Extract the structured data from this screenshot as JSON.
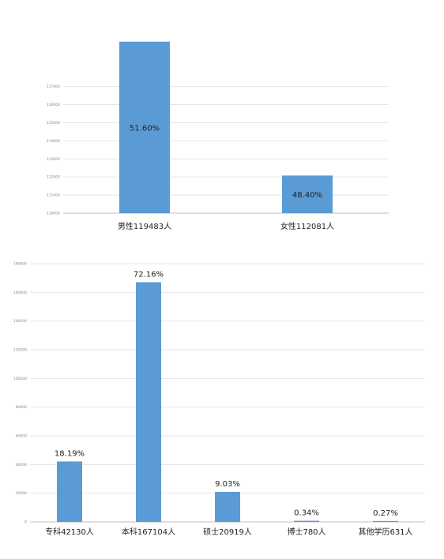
{
  "chart_data": [
    {
      "type": "bar",
      "categories": [
        "男性119483人",
        "女性112081人"
      ],
      "values": [
        119483,
        112081
      ],
      "data_labels": [
        "51.60%",
        "48.40%"
      ],
      "label_position": "inside",
      "ylim": [
        110000,
        121000
      ],
      "yticks": [
        "110000",
        "111000",
        "112000",
        "113000",
        "114000",
        "115000",
        "116000",
        "117000"
      ],
      "color": "#5b9bd5",
      "grid": true,
      "legend": "none"
    },
    {
      "type": "bar",
      "categories": [
        "专科42130人",
        "本科167104人",
        "硕士20919人",
        "博士780人",
        "其他学历631人"
      ],
      "values": [
        42130,
        167104,
        20919,
        780,
        631
      ],
      "data_labels": [
        "18.19%",
        "72.16%",
        "9.03%",
        "0.34%",
        "0.27%"
      ],
      "label_position": "above",
      "ylim": [
        0,
        180000
      ],
      "yticks": [
        "0",
        "20000",
        "40000",
        "60000",
        "80000",
        "100000",
        "120000",
        "140000",
        "160000",
        "180000"
      ],
      "color": "#5b9bd5",
      "grid": true,
      "legend": "none"
    }
  ]
}
